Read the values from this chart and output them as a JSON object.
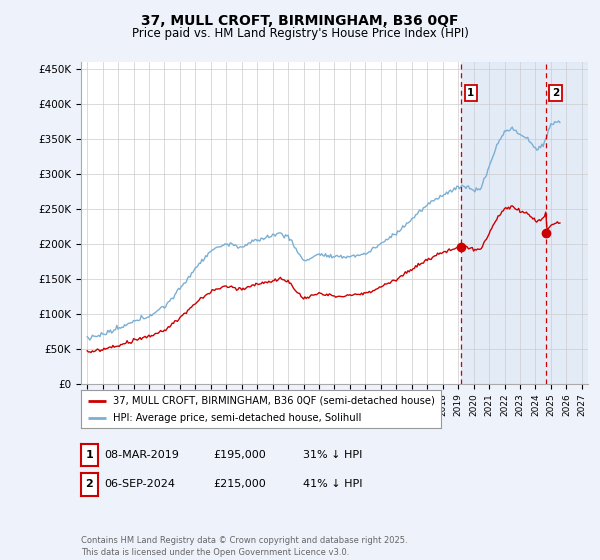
{
  "title": "37, MULL CROFT, BIRMINGHAM, B36 0QF",
  "subtitle": "Price paid vs. HM Land Registry's House Price Index (HPI)",
  "ylim": [
    0,
    460000
  ],
  "yticks": [
    0,
    50000,
    100000,
    150000,
    200000,
    250000,
    300000,
    350000,
    400000,
    450000
  ],
  "ytick_labels": [
    "£0",
    "£50K",
    "£100K",
    "£150K",
    "£200K",
    "£250K",
    "£300K",
    "£350K",
    "£400K",
    "£450K"
  ],
  "xlim_start": 1994.6,
  "xlim_end": 2027.4,
  "marker1_x": 2019.18,
  "marker1_y": 195000,
  "marker2_x": 2024.67,
  "marker2_y": 215000,
  "vline1_x": 2019.18,
  "vline2_x": 2024.67,
  "shade_start": 2019.18,
  "legend_line1": "37, MULL CROFT, BIRMINGHAM, B36 0QF (semi-detached house)",
  "legend_line2": "HPI: Average price, semi-detached house, Solihull",
  "table_row1": [
    "1",
    "08-MAR-2019",
    "£195,000",
    "31% ↓ HPI"
  ],
  "table_row2": [
    "2",
    "06-SEP-2024",
    "£215,000",
    "41% ↓ HPI"
  ],
  "footer": "Contains HM Land Registry data © Crown copyright and database right 2025.\nThis data is licensed under the Open Government Licence v3.0.",
  "red_color": "#cc0000",
  "blue_color": "#7bafd4",
  "background_color": "#eef2fb",
  "plot_bg_color": "#ffffff",
  "grid_color": "#cccccc",
  "shade_color": "#dce6f5"
}
